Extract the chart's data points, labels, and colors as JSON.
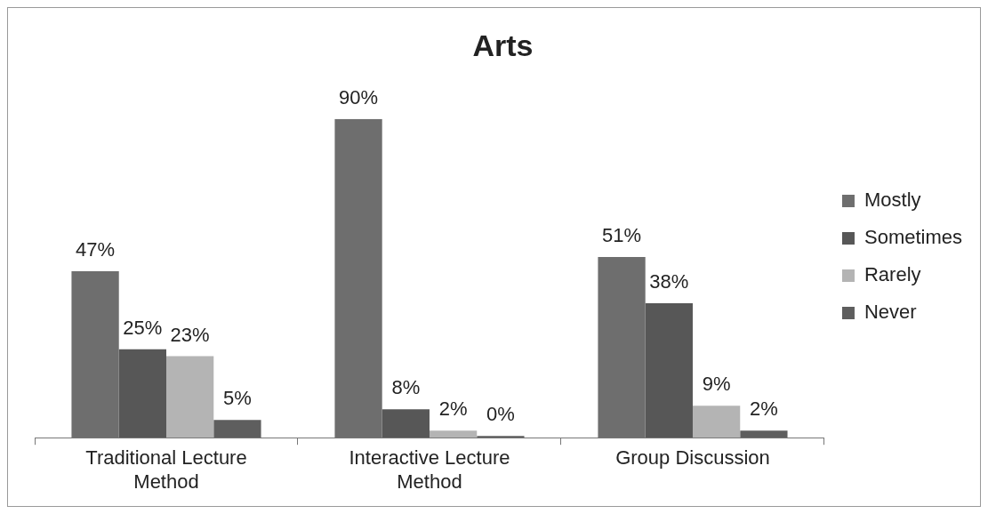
{
  "chart_data": {
    "type": "bar",
    "title": "Arts",
    "categories": [
      "Traditional Lecture Method",
      "Interactive Lecture Method",
      "Group Discussion"
    ],
    "series": [
      {
        "name": "Mostly",
        "color": "#6e6e6e",
        "values": [
          47,
          90,
          51
        ],
        "value_labels": [
          "47%",
          "90%",
          "51%"
        ]
      },
      {
        "name": "Sometimes",
        "color": "#575757",
        "values": [
          25,
          8,
          38
        ],
        "value_labels": [
          "25%",
          "8%",
          "38%"
        ]
      },
      {
        "name": "Rarely",
        "color": "#b4b4b4",
        "values": [
          23,
          2,
          9
        ],
        "value_labels": [
          "23%",
          "2%",
          "9%"
        ]
      },
      {
        "name": "Never",
        "color": "#5e5e5e",
        "values": [
          5,
          0,
          2
        ],
        "value_labels": [
          "5%",
          "0%",
          "2%"
        ]
      }
    ],
    "legend": "right",
    "grid": false,
    "tick_labels": "x"
  }
}
